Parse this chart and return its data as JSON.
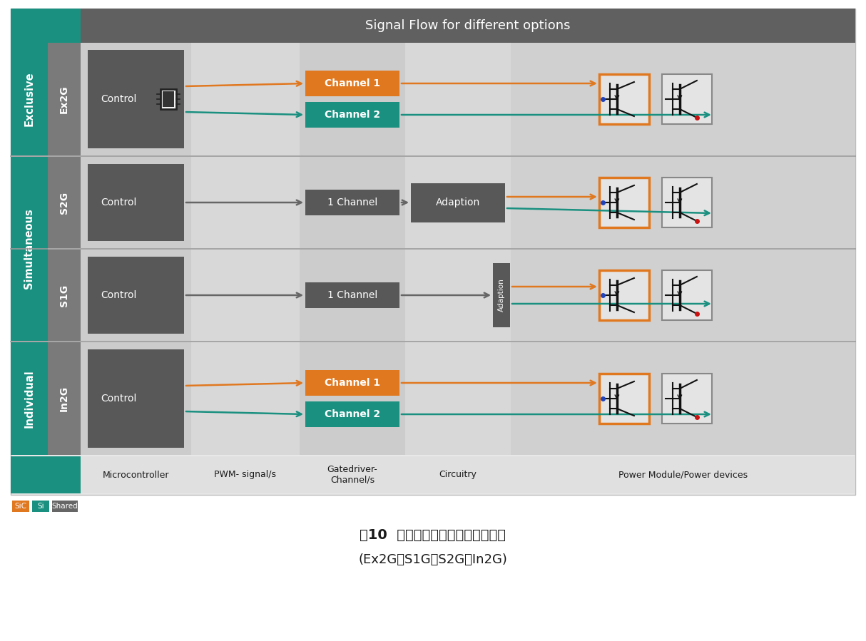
{
  "title": "Signal Flow for different options",
  "caption_line1": "图10  融合技术的不同驱动控制策略",
  "caption_line2": "(Ex2G、S1G、S2G、In2G)",
  "teal_color": "#1a9080",
  "orange_color": "#e07820",
  "dark_gray": "#555555",
  "mid_gray": "#7a7a7a",
  "ctrl_gray": "#585858",
  "light_col": "#d0d0d0",
  "lighter_col": "#dcdcdc",
  "header_bg": "#606060",
  "col_labels": [
    "Microcontroller",
    "PWM- signal/s",
    "Gatedriver-\nChannel/s",
    "Circuitry",
    "Power Module/Power devices"
  ]
}
